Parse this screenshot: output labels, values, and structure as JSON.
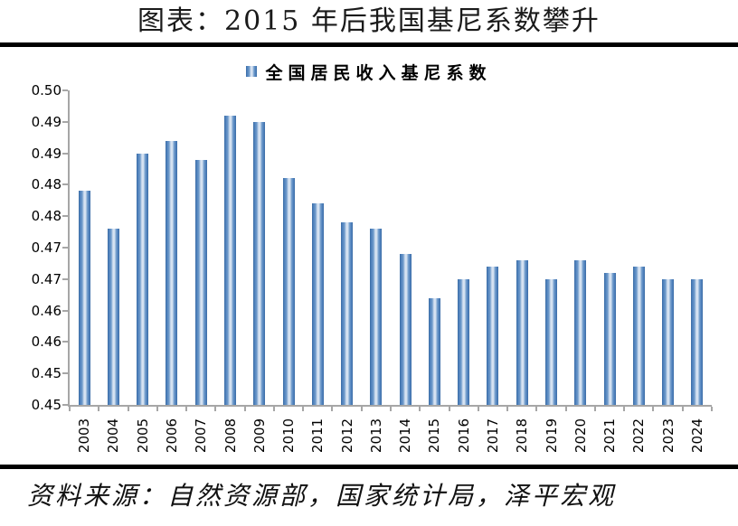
{
  "page": {
    "title": "图表：2015 年后我国基尼系数攀升",
    "source": "资料来源：自然资源部，国家统计局，泽平宏观"
  },
  "legend": {
    "label": "全国居民收入基尼系数"
  },
  "chart_data": {
    "type": "bar",
    "title": "全国居民收入基尼系数",
    "categories": [
      "2003",
      "2004",
      "2005",
      "2006",
      "2007",
      "2008",
      "2009",
      "2010",
      "2011",
      "2012",
      "2013",
      "2014",
      "2015",
      "2016",
      "2017",
      "2018",
      "2019",
      "2020",
      "2021",
      "2022",
      "2023",
      "2024"
    ],
    "values": [
      0.479,
      0.473,
      0.485,
      0.487,
      0.484,
      0.491,
      0.49,
      0.481,
      0.477,
      0.474,
      0.473,
      0.469,
      0.462,
      0.465,
      0.467,
      0.468,
      0.465,
      0.468,
      0.466,
      0.467,
      0.465,
      0.465
    ],
    "xlabel": "",
    "ylabel": "",
    "ylim": [
      0.445,
      0.495
    ],
    "ytick_step": 0.005,
    "ytick_labels_top_to_bottom": [
      "0.50",
      "0.49",
      "0.49",
      "0.48",
      "0.48",
      "0.47",
      "0.47",
      "0.46",
      "0.46",
      "0.45",
      "0.45"
    ],
    "grid": false,
    "legend_position": "top-center"
  },
  "colors": {
    "bar_main": "#4f81bd",
    "bar_edge": "#3a6ba3",
    "bar_highlight": "#d7e3f2",
    "axis": "#a6a6a6",
    "rule": "#000000",
    "text": "#000000"
  }
}
